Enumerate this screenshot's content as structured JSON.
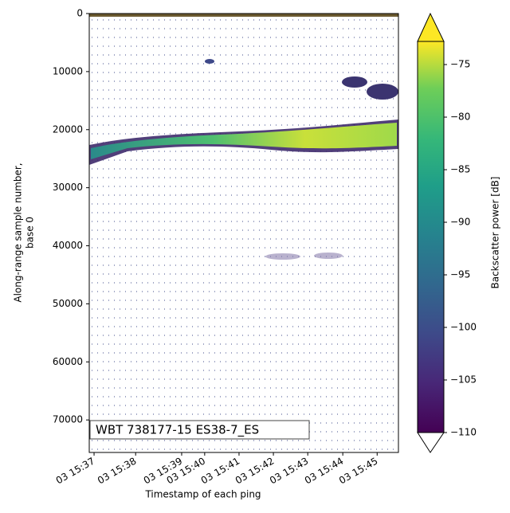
{
  "chart_data": {
    "type": "echogram",
    "xlabel": "Timestamp of each ping",
    "ylabel": [
      "Along-range sample number,",
      "base 0"
    ],
    "annotation": "WBT 738177-15 ES38-7_ES",
    "xlim": [
      0,
      900
    ],
    "xticks": [
      {
        "value": 14,
        "label": "03 15:37"
      },
      {
        "value": 135,
        "label": "03 15:38"
      },
      {
        "value": 269,
        "label": "03 15:39"
      },
      {
        "value": 336,
        "label": "03 15:40"
      },
      {
        "value": 436,
        "label": "03 15:41"
      },
      {
        "value": 536,
        "label": "03 15:42"
      },
      {
        "value": 636,
        "label": "03 15:43"
      },
      {
        "value": 738,
        "label": "03 15:44"
      },
      {
        "value": 838,
        "label": "03 15:45"
      }
    ],
    "ylim": [
      0,
      75600
    ],
    "yticks": [
      0,
      10000,
      20000,
      30000,
      40000,
      50000,
      60000,
      70000
    ],
    "colorbar": {
      "label": "Backscatter power [dB]",
      "clim": [
        -110,
        -72.8
      ],
      "ticks": [
        {
          "value": -75,
          "label": "−75"
        },
        {
          "value": -80,
          "label": "−80"
        },
        {
          "value": -85,
          "label": "−85"
        },
        {
          "value": -90,
          "label": "−90"
        },
        {
          "value": -95,
          "label": "−95"
        },
        {
          "value": -100,
          "label": "−100"
        },
        {
          "value": -105,
          "label": "−105"
        },
        {
          "value": -110,
          "label": "−110"
        }
      ]
    }
  }
}
